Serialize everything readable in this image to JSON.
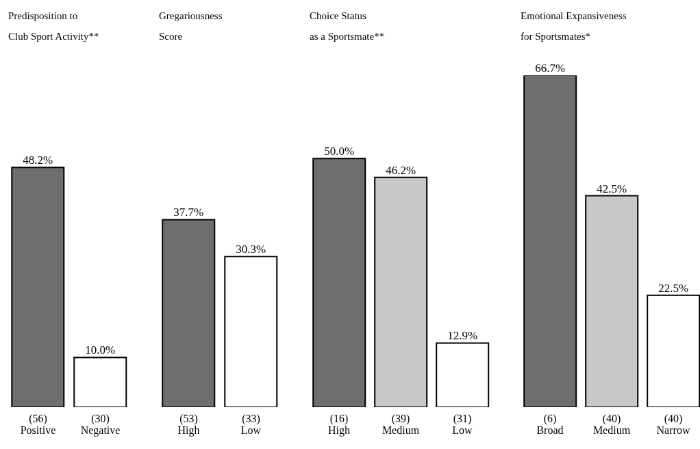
{
  "chart_data": [
    {
      "type": "bar",
      "title": "Predisposition to\nClub Sport Activity**",
      "categories": [
        "(56)\nPositive",
        "(30)\nNegative"
      ],
      "values": [
        48.2,
        10.0
      ],
      "colors": [
        "#6e6e6e",
        "#ffffff"
      ],
      "value_labels": [
        "48.2%",
        "10.0%"
      ],
      "legend": false,
      "grid": false
    },
    {
      "type": "bar",
      "title": "Gregariousness\nScore",
      "categories": [
        "(53)\nHigh",
        "(33)\nLow"
      ],
      "values": [
        37.7,
        30.3
      ],
      "colors": [
        "#6e6e6e",
        "#ffffff"
      ],
      "value_labels": [
        "37.7%",
        "30.3%"
      ],
      "legend": false,
      "grid": false
    },
    {
      "type": "bar",
      "title": "Choice Status\nas a Sportsmate**",
      "categories": [
        "(16)\nHigh",
        "(39)\nMedium",
        "(31)\nLow"
      ],
      "values": [
        50.0,
        46.2,
        12.9
      ],
      "colors": [
        "#6e6e6e",
        "#c8c8c8",
        "#ffffff"
      ],
      "value_labels": [
        "50.0%",
        "46.2%",
        "12.9%"
      ],
      "legend": false,
      "grid": false
    },
    {
      "type": "bar",
      "title": "Emotional Expansiveness\nfor Sportsmates*",
      "categories": [
        "(6)\nBroad",
        "(40)\nMedium",
        "(40)\nNarrow"
      ],
      "values": [
        66.7,
        42.5,
        22.5
      ],
      "colors": [
        "#6e6e6e",
        "#c8c8c8",
        "#ffffff"
      ],
      "value_labels": [
        "66.7%",
        "42.5%",
        "22.5%"
      ],
      "legend": false,
      "grid": false
    }
  ]
}
